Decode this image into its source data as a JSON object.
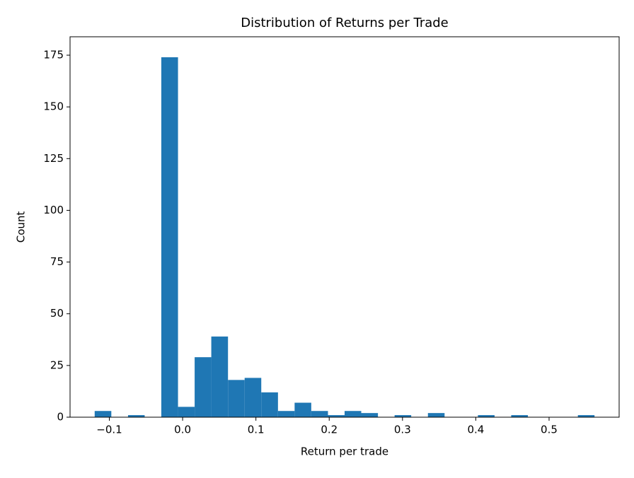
{
  "chart_data": {
    "type": "histogram",
    "title": "Distribution of Returns per Trade",
    "x_label": "Return per trade",
    "y_label": "Count",
    "color": "#1f77b4",
    "bins": [
      -0.12,
      -0.0973,
      -0.0745,
      -0.0518,
      -0.0291,
      -0.0063,
      0.0164,
      0.0391,
      0.0619,
      0.0846,
      0.1073,
      0.1301,
      0.1528,
      0.1755,
      0.1983,
      0.221,
      0.2437,
      0.2665,
      0.2892,
      0.3119,
      0.3347,
      0.3574,
      0.3801,
      0.4029,
      0.4256,
      0.4483,
      0.4711,
      0.4938,
      0.5165,
      0.5393,
      0.562
    ],
    "values": [
      3,
      0,
      1,
      0,
      174,
      5,
      29,
      39,
      18,
      19,
      12,
      3,
      7,
      3,
      1,
      3,
      2,
      0,
      1,
      0,
      2,
      0,
      0,
      1,
      0,
      1,
      0,
      0,
      0,
      1
    ],
    "xlim": [
      -0.1536,
      0.5956
    ],
    "ylim": [
      0,
      183.9
    ],
    "xticks": [
      {
        "value": -0.1,
        "label": "−0.1"
      },
      {
        "value": 0,
        "label": "0.0"
      },
      0.1,
      0.2,
      0.3,
      0.4,
      0.5
    ],
    "yticks": [
      0,
      25,
      50,
      75,
      100,
      125,
      150,
      175
    ]
  }
}
